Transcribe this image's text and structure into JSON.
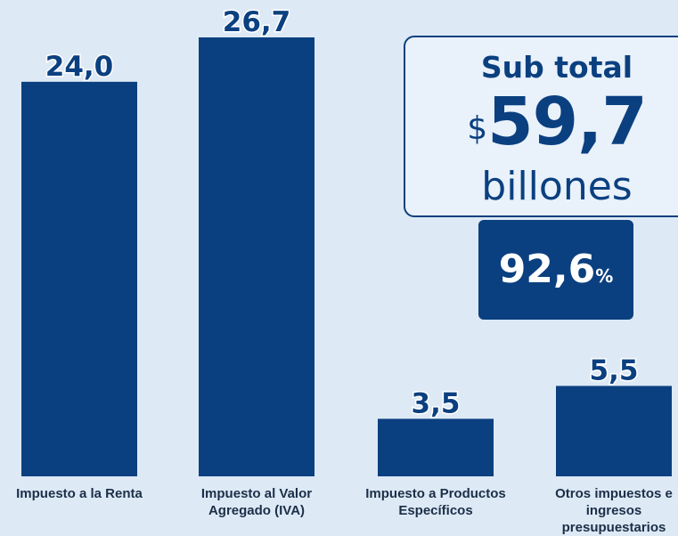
{
  "chart_data": {
    "type": "bar",
    "categories": [
      "Impuesto a la Renta",
      "Impuesto al Valor Agregado (IVA)",
      "Impuesto a Productos Específicos",
      "Otros impuestos e ingresos presupuestarios"
    ],
    "category_lines": [
      [
        "Impuesto a la Renta"
      ],
      [
        "Impuesto al Valor",
        "Agregado (IVA)"
      ],
      [
        "Impuesto a Productos",
        "Específicos"
      ],
      [
        "Otros impuestos e",
        "ingresos",
        "presupuestarios"
      ]
    ],
    "values": [
      24.0,
      26.7,
      3.5,
      5.5
    ],
    "value_labels": [
      "24,0",
      "26,7",
      "3,5",
      "5,5"
    ],
    "ylim": [
      0,
      26.7
    ],
    "grid": false,
    "bar_color": "#0b4080"
  },
  "subtotal": {
    "title": "Sub total",
    "currency": "$",
    "amount": "59,7",
    "unit": "billones",
    "share": "92,6",
    "share_symbol": "%"
  },
  "colors": {
    "background": "#dde9f5",
    "accent": "#0b4080",
    "label_text": "#1c2f48"
  }
}
